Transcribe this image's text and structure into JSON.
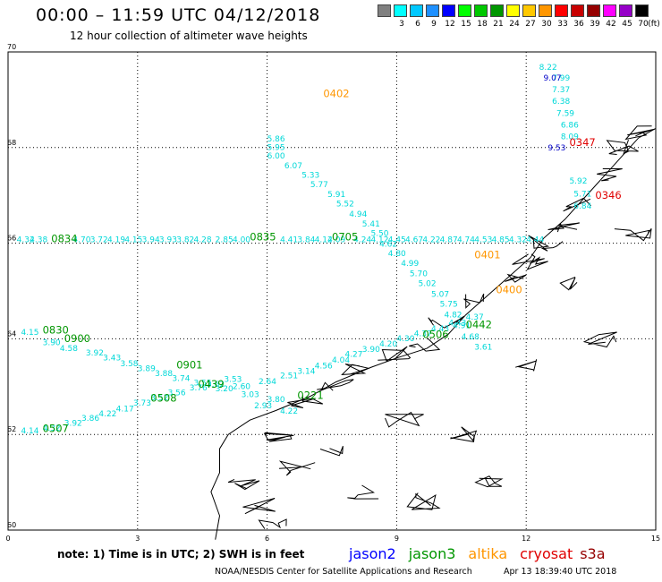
{
  "header": {
    "title": "00:00 – 11:59 UTC 04/12/2018",
    "subtitle": "12 hour collection of altimeter wave heights"
  },
  "colorbar": {
    "unit": "(ft)",
    "swatches": [
      {
        "label": "",
        "color": "#808080"
      },
      {
        "label": "3",
        "color": "#00ffff"
      },
      {
        "label": "6",
        "color": "#00c8ff"
      },
      {
        "label": "9",
        "color": "#1e90ff"
      },
      {
        "label": "12",
        "color": "#0000ff"
      },
      {
        "label": "15",
        "color": "#00ff00"
      },
      {
        "label": "18",
        "color": "#00c800"
      },
      {
        "label": "21",
        "color": "#009600"
      },
      {
        "label": "24",
        "color": "#ffff00"
      },
      {
        "label": "27",
        "color": "#ffc800"
      },
      {
        "label": "30",
        "color": "#ff9600"
      },
      {
        "label": "33",
        "color": "#ff0000"
      },
      {
        "label": "36",
        "color": "#c80000"
      },
      {
        "label": "39",
        "color": "#960000"
      },
      {
        "label": "42",
        "color": "#ff00ff"
      },
      {
        "label": "45",
        "color": "#9600c8"
      },
      {
        "label": "70",
        "color": "#000000"
      }
    ]
  },
  "map": {
    "x_ticks": [
      "0",
      "3",
      "6",
      "9",
      "12",
      "15"
    ],
    "y_ticks": [
      "70",
      "68",
      "66",
      "64",
      "62",
      "60"
    ],
    "xlim": [
      0,
      15
    ],
    "ylim": [
      60,
      70
    ]
  },
  "tracks": [
    {
      "id": "lon-track",
      "color": "#00d8d8",
      "labels": [
        {
          "lon": 6.0,
          "lat": 68.13,
          "t": "5.86"
        },
        {
          "lon": 6.0,
          "lat": 67.95,
          "t": "5.95"
        },
        {
          "lon": 6.0,
          "lat": 67.77,
          "t": "6.00"
        },
        {
          "lon": 6.4,
          "lat": 67.57,
          "t": "6.07"
        },
        {
          "lon": 6.8,
          "lat": 67.37,
          "t": "5.33"
        },
        {
          "lon": 7.0,
          "lat": 67.17,
          "t": "5.77"
        },
        {
          "lon": 7.4,
          "lat": 66.97,
          "t": "5.91"
        },
        {
          "lon": 7.6,
          "lat": 66.77,
          "t": "5.52"
        },
        {
          "lon": 7.9,
          "lat": 66.55,
          "t": "4.94"
        },
        {
          "lon": 8.2,
          "lat": 66.35,
          "t": "5.41"
        },
        {
          "lon": 8.4,
          "lat": 66.15,
          "t": "5.50"
        },
        {
          "lon": 8.6,
          "lat": 65.93,
          "t": "4.62"
        },
        {
          "lon": 8.8,
          "lat": 65.73,
          "t": "4.80"
        },
        {
          "lon": 9.1,
          "lat": 65.52,
          "t": "4.99"
        },
        {
          "lon": 9.3,
          "lat": 65.31,
          "t": "5.70"
        },
        {
          "lon": 9.5,
          "lat": 65.1,
          "t": "5.02"
        },
        {
          "lon": 9.8,
          "lat": 64.88,
          "t": "5.07"
        },
        {
          "lon": 10.0,
          "lat": 64.67,
          "t": "5.75"
        },
        {
          "lon": 10.1,
          "lat": 64.45,
          "t": "4.82"
        },
        {
          "lon": 10.3,
          "lat": 64.22,
          "t": "4.91"
        },
        {
          "lon": 10.5,
          "lat": 63.99,
          "t": "4.68"
        },
        {
          "lon": 10.8,
          "lat": 63.77,
          "t": "3.61"
        }
      ]
    },
    {
      "id": "ne-track",
      "color": "#00d8d8",
      "labels": [
        {
          "lon": 12.3,
          "lat": 69.63,
          "t": "8.22"
        },
        {
          "lon": 12.6,
          "lat": 69.4,
          "t": "7.99"
        },
        {
          "lon": 12.6,
          "lat": 69.16,
          "t": "7.37"
        },
        {
          "lon": 12.6,
          "lat": 68.91,
          "t": "6.38"
        },
        {
          "lon": 12.7,
          "lat": 68.66,
          "t": "7.59"
        },
        {
          "lon": 12.8,
          "lat": 68.42,
          "t": "6.86"
        },
        {
          "lon": 12.8,
          "lat": 68.17,
          "t": "8.09"
        },
        {
          "lon": 13.0,
          "lat": 67.25,
          "t": "5.92"
        },
        {
          "lon": 13.1,
          "lat": 66.98,
          "t": "5.71"
        },
        {
          "lon": 13.1,
          "lat": 66.72,
          "t": "6.84"
        }
      ]
    },
    {
      "id": "ne-track-blue",
      "color": "#0000c8",
      "labels": [
        {
          "lon": 12.4,
          "lat": 69.4,
          "t": "9.07"
        },
        {
          "lon": 12.5,
          "lat": 67.94,
          "t": "9.53"
        }
      ]
    },
    {
      "id": "lat66-track",
      "color": "#00d8d8",
      "labels": [
        {
          "lon": 0.2,
          "lat": 66.02,
          "t": "4.32"
        },
        {
          "lon": 0.5,
          "lat": 66.02,
          "t": "4.38"
        },
        {
          "lon": 1.5,
          "lat": 66.02,
          "t": "4.70"
        },
        {
          "lon": 1.9,
          "lat": 66.02,
          "t": "3.72"
        },
        {
          "lon": 2.3,
          "lat": 66.02,
          "t": "4.19"
        },
        {
          "lon": 2.7,
          "lat": 66.02,
          "t": "4.15"
        },
        {
          "lon": 3.1,
          "lat": 66.02,
          "t": "3.94"
        },
        {
          "lon": 3.5,
          "lat": 66.02,
          "t": "3.93"
        },
        {
          "lon": 3.9,
          "lat": 66.02,
          "t": "3.82"
        },
        {
          "lon": 4.3,
          "lat": 66.02,
          "t": "4.28"
        },
        {
          "lon": 4.8,
          "lat": 66.02,
          "t": "2.85"
        },
        {
          "lon": 5.2,
          "lat": 66.02,
          "t": "4.00"
        },
        {
          "lon": 6.3,
          "lat": 66.02,
          "t": "4.41"
        },
        {
          "lon": 6.7,
          "lat": 66.02,
          "t": "3.84"
        },
        {
          "lon": 7.1,
          "lat": 66.02,
          "t": "4.12"
        },
        {
          "lon": 7.4,
          "lat": 66.02,
          "t": "4.09"
        },
        {
          "lon": 8.0,
          "lat": 66.02,
          "t": "4.24"
        },
        {
          "lon": 8.4,
          "lat": 66.02,
          "t": "4.12"
        },
        {
          "lon": 8.8,
          "lat": 66.02,
          "t": "4.45"
        },
        {
          "lon": 9.2,
          "lat": 66.02,
          "t": "4.67"
        },
        {
          "lon": 9.6,
          "lat": 66.02,
          "t": "4.22"
        },
        {
          "lon": 10.0,
          "lat": 66.02,
          "t": "4.87"
        },
        {
          "lon": 10.4,
          "lat": 66.02,
          "t": "4.74"
        },
        {
          "lon": 10.8,
          "lat": 66.02,
          "t": "4.53"
        },
        {
          "lon": 11.2,
          "lat": 66.02,
          "t": "4.85"
        },
        {
          "lon": 11.6,
          "lat": 66.02,
          "t": "4.32"
        },
        {
          "lon": 12.0,
          "lat": 66.02,
          "t": "4.44"
        }
      ]
    },
    {
      "id": "sw-track",
      "color": "#00d8d8",
      "labels": [
        {
          "lon": 0.3,
          "lat": 64.08,
          "t": "4.15"
        },
        {
          "lon": 0.8,
          "lat": 63.87,
          "t": "3.90"
        },
        {
          "lon": 1.2,
          "lat": 63.75,
          "t": "4.58"
        },
        {
          "lon": 1.8,
          "lat": 63.65,
          "t": "3.92"
        },
        {
          "lon": 2.2,
          "lat": 63.55,
          "t": "3.43"
        },
        {
          "lon": 2.6,
          "lat": 63.43,
          "t": "3.58"
        },
        {
          "lon": 3.0,
          "lat": 63.32,
          "t": "3.89"
        },
        {
          "lon": 3.4,
          "lat": 63.22,
          "t": "3.88"
        },
        {
          "lon": 3.8,
          "lat": 63.12,
          "t": "3.74"
        },
        {
          "lon": 4.3,
          "lat": 63.02,
          "t": "3.55"
        },
        {
          "lon": 4.8,
          "lat": 62.9,
          "t": "3.20"
        },
        {
          "lon": 5.4,
          "lat": 62.78,
          "t": "3.03"
        },
        {
          "lon": 6.0,
          "lat": 62.68,
          "t": "3.80"
        },
        {
          "lon": 6.3,
          "lat": 62.43,
          "t": "4.22"
        },
        {
          "lon": 5.7,
          "lat": 62.55,
          "t": "2.93"
        }
      ]
    },
    {
      "id": "ne-diag-track",
      "color": "#00d8d8",
      "labels": [
        {
          "lon": 5.2,
          "lat": 62.95,
          "t": "2.60"
        },
        {
          "lon": 5.8,
          "lat": 63.05,
          "t": "2.64"
        },
        {
          "lon": 6.3,
          "lat": 63.17,
          "t": "2.51"
        },
        {
          "lon": 6.7,
          "lat": 63.27,
          "t": "3.14"
        },
        {
          "lon": 7.1,
          "lat": 63.38,
          "t": "4.56"
        },
        {
          "lon": 7.5,
          "lat": 63.5,
          "t": "4.04"
        },
        {
          "lon": 7.8,
          "lat": 63.62,
          "t": "4.27"
        },
        {
          "lon": 8.2,
          "lat": 63.73,
          "t": "3.90"
        },
        {
          "lon": 8.6,
          "lat": 63.84,
          "t": "4.20"
        },
        {
          "lon": 9.0,
          "lat": 63.95,
          "t": "4.30"
        },
        {
          "lon": 9.4,
          "lat": 64.05,
          "t": "4.37"
        },
        {
          "lon": 9.8,
          "lat": 64.16,
          "t": "4.43"
        },
        {
          "lon": 10.2,
          "lat": 64.28,
          "t": "4.43"
        },
        {
          "lon": 10.6,
          "lat": 64.4,
          "t": "4.37"
        }
      ]
    },
    {
      "id": "lower-track",
      "color": "#00d8d8",
      "labels": [
        {
          "lon": 0.3,
          "lat": 62.02,
          "t": "4.14"
        },
        {
          "lon": 0.8,
          "lat": 62.08,
          "t": "4.32"
        },
        {
          "lon": 1.3,
          "lat": 62.18,
          "t": "3.92"
        },
        {
          "lon": 1.7,
          "lat": 62.28,
          "t": "3.86"
        },
        {
          "lon": 2.1,
          "lat": 62.38,
          "t": "4.22"
        },
        {
          "lon": 2.5,
          "lat": 62.48,
          "t": "4.17"
        },
        {
          "lon": 2.9,
          "lat": 62.6,
          "t": "3.73"
        },
        {
          "lon": 3.3,
          "lat": 62.72,
          "t": "3.52"
        },
        {
          "lon": 3.7,
          "lat": 62.82,
          "t": "3.56"
        },
        {
          "lon": 4.2,
          "lat": 62.92,
          "t": "3.76"
        },
        {
          "lon": 4.6,
          "lat": 63.0,
          "t": "3.62"
        },
        {
          "lon": 5.0,
          "lat": 63.1,
          "t": "3.53"
        }
      ]
    }
  ],
  "time_labels": [
    {
      "lon": 7.3,
      "lat": 69.05,
      "t": "0402",
      "color": "#ff9600"
    },
    {
      "lon": 13.0,
      "lat": 68.03,
      "t": "0347",
      "color": "#e00000"
    },
    {
      "lon": 13.6,
      "lat": 66.93,
      "t": "0346",
      "color": "#e00000"
    },
    {
      "lon": 1.0,
      "lat": 66.02,
      "t": "0834",
      "color": "#009600"
    },
    {
      "lon": 5.6,
      "lat": 66.06,
      "t": "0835",
      "color": "#009600"
    },
    {
      "lon": 7.5,
      "lat": 66.06,
      "t": "0705",
      "color": "#009600"
    },
    {
      "lon": 10.8,
      "lat": 65.68,
      "t": "0401",
      "color": "#ff9600"
    },
    {
      "lon": 11.3,
      "lat": 64.95,
      "t": "0400",
      "color": "#ff9600"
    },
    {
      "lon": 0.8,
      "lat": 64.11,
      "t": "0830",
      "color": "#009600"
    },
    {
      "lon": 1.3,
      "lat": 63.93,
      "t": "0900",
      "color": "#009600"
    },
    {
      "lon": 9.6,
      "lat": 64.02,
      "t": "0506",
      "color": "#009600"
    },
    {
      "lon": 10.6,
      "lat": 64.22,
      "t": "0442",
      "color": "#009600"
    },
    {
      "lon": 3.9,
      "lat": 63.38,
      "t": "0901",
      "color": "#009600"
    },
    {
      "lon": 4.4,
      "lat": 62.98,
      "t": "0439",
      "color": "#009600"
    },
    {
      "lon": 3.3,
      "lat": 62.69,
      "t": "0508",
      "color": "#009600"
    },
    {
      "lon": 6.7,
      "lat": 62.74,
      "t": "0221",
      "color": "#009600"
    },
    {
      "lon": 0.8,
      "lat": 62.05,
      "t": "0507",
      "color": "#009600"
    }
  ],
  "footer": {
    "note": "note: 1) Time is in UTC; 2) SWH is in feet",
    "satellites": [
      {
        "name": "jason2",
        "color": "#0000ff"
      },
      {
        "name": "jason3",
        "color": "#009600"
      },
      {
        "name": "altika",
        "color": "#ff9600"
      },
      {
        "name": "cryosat",
        "color": "#e00000"
      },
      {
        "name": "s3a",
        "color": "#960000"
      }
    ],
    "credits": "NOAA/NESDIS Center for Satellite Applications and Research",
    "timestamp": "Apr 13 18:39:40 UTC 2018"
  }
}
